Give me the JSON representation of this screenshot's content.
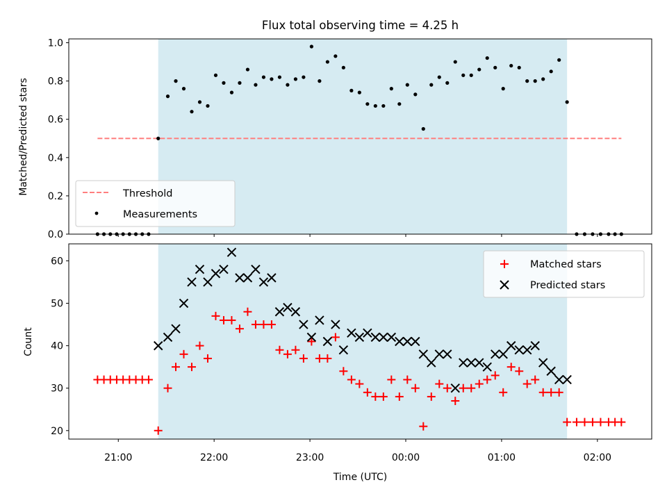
{
  "chart_data": [
    {
      "type": "scatter",
      "title": "Flux total observing time = 4.25 h",
      "xlabel": "",
      "ylabel": "Matched/Predicted stars",
      "ylim": [
        0,
        1.02
      ],
      "yticks": [
        "0.0",
        "0.2",
        "0.4",
        "0.6",
        "0.8",
        "1.0"
      ],
      "grid": false,
      "legend_position": "lower-left",
      "threshold": {
        "name": "Threshold",
        "value": 0.5,
        "x_start": "20:47",
        "x_end": "02:15",
        "color": "#ff7f7f"
      },
      "shaded_region": {
        "x_start": "21:25",
        "x_end": "01:41",
        "color": "#add8e6"
      },
      "series": [
        {
          "name": "Measurements",
          "color": "#000000",
          "x": [
            "20:47",
            "20:51",
            "20:55",
            "20:59",
            "21:03",
            "21:07",
            "21:11",
            "21:15",
            "21:19",
            "21:25",
            "21:31",
            "21:36",
            "21:41",
            "21:46",
            "21:51",
            "21:56",
            "22:01",
            "22:06",
            "22:11",
            "22:16",
            "22:21",
            "22:26",
            "22:31",
            "22:36",
            "22:41",
            "22:46",
            "22:51",
            "22:56",
            "23:01",
            "23:06",
            "23:11",
            "23:16",
            "23:21",
            "23:26",
            "23:31",
            "23:36",
            "23:41",
            "23:46",
            "23:51",
            "23:56",
            "00:01",
            "00:06",
            "00:11",
            "00:16",
            "00:21",
            "00:26",
            "00:31",
            "00:36",
            "00:41",
            "00:46",
            "00:51",
            "00:56",
            "01:01",
            "01:06",
            "01:11",
            "01:16",
            "01:21",
            "01:26",
            "01:31",
            "01:36",
            "01:41",
            "01:47",
            "01:52",
            "01:57",
            "02:02",
            "02:07",
            "02:11",
            "02:15"
          ],
          "y": [
            0,
            0,
            0,
            0,
            0,
            0,
            0,
            0,
            0,
            0.5,
            0.72,
            0.8,
            0.76,
            0.64,
            0.69,
            0.67,
            0.83,
            0.79,
            0.74,
            0.79,
            0.86,
            0.78,
            0.82,
            0.81,
            0.82,
            0.78,
            0.81,
            0.82,
            0.98,
            0.8,
            0.9,
            0.93,
            0.87,
            0.75,
            0.74,
            0.68,
            0.67,
            0.67,
            0.76,
            0.68,
            0.78,
            0.73,
            0.55,
            0.78,
            0.82,
            0.79,
            0.9,
            0.83,
            0.83,
            0.86,
            0.92,
            0.87,
            0.76,
            0.88,
            0.87,
            0.8,
            0.8,
            0.81,
            0.85,
            0.91,
            0.69,
            0,
            0,
            0,
            0,
            0,
            0,
            0
          ]
        }
      ]
    },
    {
      "type": "scatter",
      "title": "",
      "xlabel": "Time (UTC)",
      "ylabel": "Count",
      "ylim": [
        18,
        64
      ],
      "yticks": [
        "20",
        "30",
        "40",
        "50",
        "60"
      ],
      "xticks": [
        "21:00",
        "22:00",
        "23:00",
        "00:00",
        "01:00",
        "02:00"
      ],
      "grid": false,
      "legend_position": "upper-right",
      "shaded_region": {
        "x_start": "21:25",
        "x_end": "01:41",
        "color": "#add8e6"
      },
      "series": [
        {
          "name": "Matched stars",
          "marker": "+",
          "color": "#ff0000",
          "x": [
            "20:47",
            "20:51",
            "20:55",
            "20:59",
            "21:03",
            "21:07",
            "21:11",
            "21:15",
            "21:19",
            "21:25",
            "21:31",
            "21:36",
            "21:41",
            "21:46",
            "21:51",
            "21:56",
            "22:01",
            "22:06",
            "22:11",
            "22:16",
            "22:21",
            "22:26",
            "22:31",
            "22:36",
            "22:41",
            "22:46",
            "22:51",
            "22:56",
            "23:01",
            "23:06",
            "23:11",
            "23:16",
            "23:21",
            "23:26",
            "23:31",
            "23:36",
            "23:41",
            "23:46",
            "23:51",
            "23:56",
            "00:01",
            "00:06",
            "00:11",
            "00:16",
            "00:21",
            "00:26",
            "00:31",
            "00:36",
            "00:41",
            "00:46",
            "00:51",
            "00:56",
            "01:01",
            "01:06",
            "01:11",
            "01:16",
            "01:21",
            "01:26",
            "01:31",
            "01:36",
            "01:41",
            "01:47",
            "01:52",
            "01:57",
            "02:02",
            "02:07",
            "02:11",
            "02:15"
          ],
          "y": [
            32,
            32,
            32,
            32,
            32,
            32,
            32,
            32,
            32,
            20,
            30,
            35,
            38,
            35,
            40,
            37,
            47,
            46,
            46,
            44,
            48,
            45,
            45,
            45,
            39,
            38,
            39,
            37,
            41,
            37,
            37,
            42,
            34,
            32,
            31,
            29,
            28,
            28,
            32,
            28,
            32,
            30,
            21,
            28,
            31,
            30,
            27,
            30,
            30,
            31,
            32,
            33,
            29,
            35,
            34,
            31,
            32,
            29,
            29,
            29,
            22,
            22,
            22,
            22,
            22,
            22,
            22,
            22
          ]
        },
        {
          "name": "Predicted stars",
          "marker": "x",
          "color": "#000000",
          "x": [
            "21:25",
            "21:31",
            "21:36",
            "21:41",
            "21:46",
            "21:51",
            "21:56",
            "22:01",
            "22:06",
            "22:11",
            "22:16",
            "22:21",
            "22:26",
            "22:31",
            "22:36",
            "22:41",
            "22:46",
            "22:51",
            "22:56",
            "23:01",
            "23:06",
            "23:11",
            "23:16",
            "23:21",
            "23:26",
            "23:31",
            "23:36",
            "23:41",
            "23:46",
            "23:51",
            "23:56",
            "00:01",
            "00:06",
            "00:11",
            "00:16",
            "00:21",
            "00:26",
            "00:31",
            "00:36",
            "00:41",
            "00:46",
            "00:51",
            "00:56",
            "01:01",
            "01:06",
            "01:11",
            "01:16",
            "01:21",
            "01:26",
            "01:31",
            "01:36",
            "01:41"
          ],
          "y": [
            40,
            42,
            44,
            50,
            55,
            58,
            55,
            57,
            58,
            62,
            56,
            56,
            58,
            55,
            56,
            48,
            49,
            48,
            45,
            42,
            46,
            41,
            45,
            39,
            43,
            42,
            43,
            42,
            42,
            42,
            41,
            41,
            41,
            38,
            36,
            38,
            38,
            30,
            36,
            36,
            36,
            35,
            38,
            38,
            40,
            39,
            39,
            40,
            36,
            34,
            32,
            32
          ]
        }
      ]
    }
  ]
}
